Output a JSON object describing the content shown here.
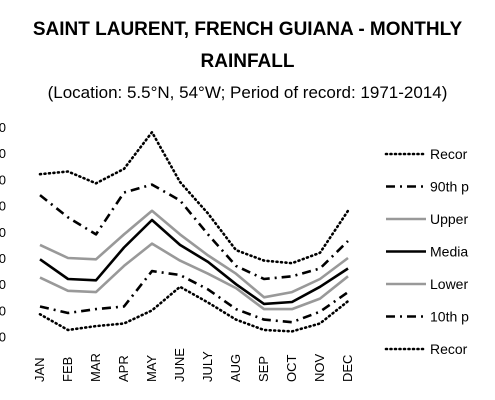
{
  "chart_data": {
    "type": "line",
    "title_line1": "SAINT LAURENT, FRENCH GUIANA - MONTHLY",
    "title_line2": "RAINFALL",
    "subtitle": "(Location: 5.5°N, 54°W; Period of record: 1971-2014)",
    "categories": [
      "JAN",
      "FEB",
      "MAR",
      "APR",
      "MAY",
      "JUNE",
      "JULY",
      "AUG",
      "SEP",
      "OCT",
      "NOV",
      "DEC"
    ],
    "yticks": [
      "0",
      "0",
      "0",
      "0",
      "0",
      "0",
      "0",
      "0",
      "0"
    ],
    "legend_position": "right",
    "series": [
      {
        "name": "Recor",
        "style": "dotted",
        "color": "#000000",
        "values": [
          720,
          730,
          685,
          740,
          880,
          690,
          570,
          430,
          390,
          380,
          420,
          580
        ]
      },
      {
        "name": "90th p",
        "style": "dashdot",
        "color": "#000000",
        "values": [
          640,
          555,
          490,
          650,
          680,
          620,
          490,
          370,
          320,
          330,
          360,
          465
        ]
      },
      {
        "name": "Upper",
        "style": "solid",
        "color": "#999999",
        "values": [
          450,
          400,
          395,
          490,
          580,
          490,
          410,
          340,
          250,
          270,
          320,
          400
        ]
      },
      {
        "name": "Media",
        "style": "solid",
        "color": "#000000",
        "values": [
          395,
          320,
          315,
          440,
          545,
          450,
          385,
          300,
          225,
          232,
          290,
          360
        ]
      },
      {
        "name": "Lower",
        "style": "solid",
        "color": "#999999",
        "values": [
          325,
          275,
          270,
          370,
          455,
          390,
          340,
          285,
          205,
          205,
          245,
          330
        ]
      },
      {
        "name": "10th p",
        "style": "dashdot",
        "color": "#000000",
        "values": [
          215,
          190,
          205,
          215,
          350,
          335,
          280,
          205,
          165,
          155,
          195,
          270
        ]
      },
      {
        "name": "Recor",
        "style": "dotted",
        "color": "#000000",
        "values": [
          185,
          125,
          140,
          150,
          200,
          290,
          230,
          165,
          125,
          120,
          150,
          235
        ]
      }
    ]
  }
}
